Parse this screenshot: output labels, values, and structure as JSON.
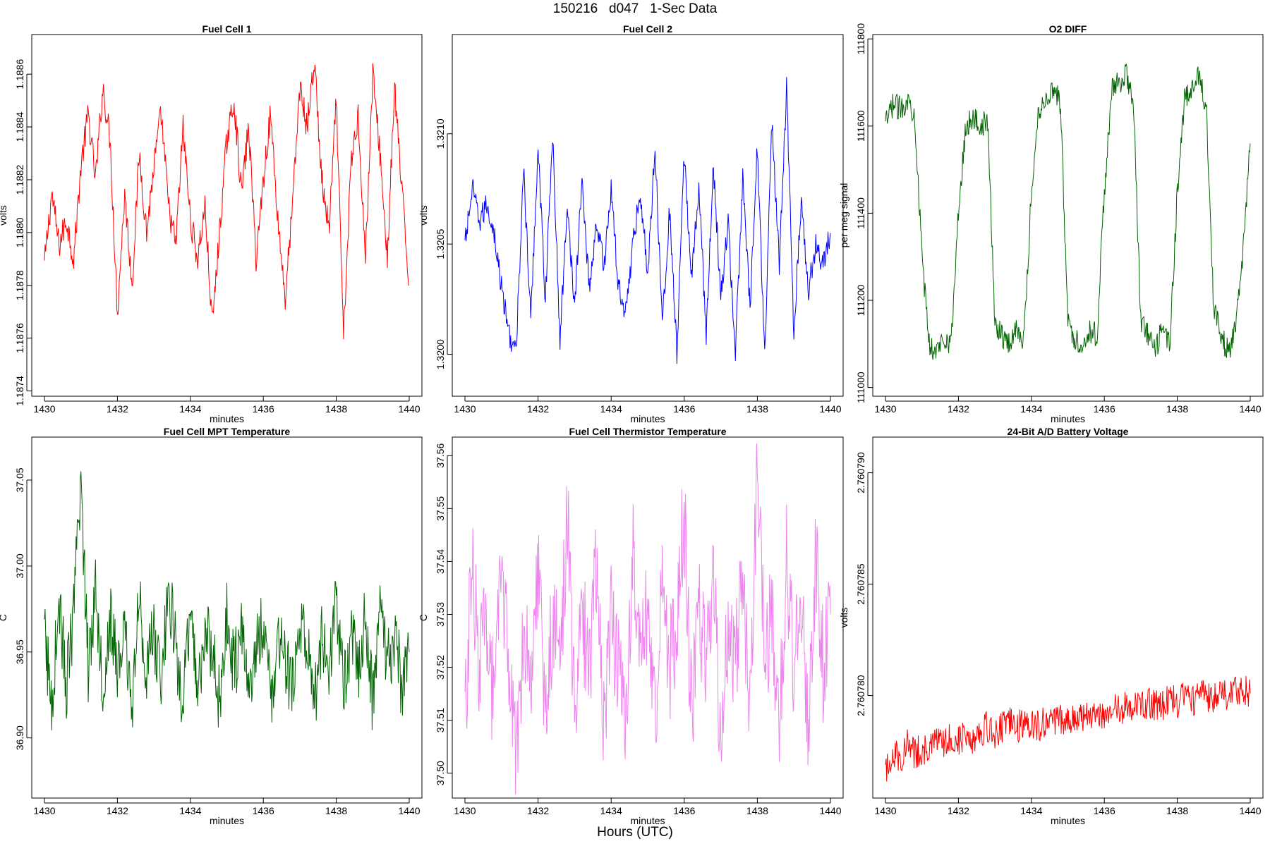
{
  "figure": {
    "title": "150216   d047   1-Sec Data",
    "xlabel": "Hours (UTC)"
  },
  "chart_data": [
    {
      "type": "line",
      "title": "Fuel Cell 1",
      "xlabel": "minutes",
      "ylabel": "volts",
      "color": "#ff0000",
      "xlim": [
        1430,
        1440
      ],
      "ylim": [
        1.18738,
        1.18875
      ],
      "xticks": [
        "1430",
        "1432",
        "1434",
        "1436",
        "1438",
        "1440"
      ],
      "yticks": [
        "1.1874",
        "1.1876",
        "1.1878",
        "1.1880",
        "1.1882",
        "1.1884",
        "1.1886"
      ],
      "series": [
        {
          "x": [
            1430.0,
            1430.2,
            1430.4,
            1430.6,
            1430.8,
            1431.0,
            1431.2,
            1431.4,
            1431.6,
            1431.8,
            1432.0,
            1432.2,
            1432.4,
            1432.6,
            1432.8,
            1433.0,
            1433.2,
            1433.4,
            1433.6,
            1433.8,
            1434.0,
            1434.2,
            1434.4,
            1434.6,
            1434.8,
            1435.0,
            1435.2,
            1435.4,
            1435.6,
            1435.8,
            1436.0,
            1436.2,
            1436.4,
            1436.6,
            1436.8,
            1437.0,
            1437.2,
            1437.4,
            1437.6,
            1437.8,
            1438.0,
            1438.2,
            1438.4,
            1438.6,
            1438.8,
            1439.0,
            1439.2,
            1439.4,
            1439.6,
            1439.8,
            1440.0
          ],
          "y": [
            1.18788,
            1.18815,
            1.18795,
            1.18805,
            1.1879,
            1.18825,
            1.18845,
            1.1882,
            1.18855,
            1.18835,
            1.1877,
            1.18815,
            1.1878,
            1.1883,
            1.188,
            1.18825,
            1.18845,
            1.1881,
            1.18795,
            1.1884,
            1.18805,
            1.1879,
            1.1881,
            1.18765,
            1.188,
            1.18835,
            1.1885,
            1.18815,
            1.1884,
            1.1879,
            1.1882,
            1.18845,
            1.18805,
            1.18775,
            1.1881,
            1.18855,
            1.1884,
            1.18865,
            1.1882,
            1.188,
            1.1885,
            1.1876,
            1.18825,
            1.18845,
            1.1879,
            1.1886,
            1.1883,
            1.1879,
            1.18855,
            1.18815,
            1.1878
          ]
        }
      ]
    },
    {
      "type": "line",
      "title": "Fuel Cell 2",
      "xlabel": "minutes",
      "ylabel": "volts",
      "color": "#0000ff",
      "xlim": [
        1430,
        1440
      ],
      "ylim": [
        1.31981,
        1.32145
      ],
      "xticks": [
        "1430",
        "1432",
        "1434",
        "1436",
        "1438",
        "1440"
      ],
      "yticks": [
        "1.3200",
        "1.3205",
        "1.3210"
      ],
      "series": [
        {
          "x": [
            1430.0,
            1430.2,
            1430.4,
            1430.6,
            1430.8,
            1431.0,
            1431.2,
            1431.4,
            1431.6,
            1431.8,
            1432.0,
            1432.2,
            1432.4,
            1432.6,
            1432.8,
            1433.0,
            1433.2,
            1433.4,
            1433.6,
            1433.8,
            1434.0,
            1434.2,
            1434.4,
            1434.6,
            1434.8,
            1435.0,
            1435.2,
            1435.4,
            1435.6,
            1435.8,
            1436.0,
            1436.2,
            1436.4,
            1436.6,
            1436.8,
            1437.0,
            1437.2,
            1437.4,
            1437.6,
            1437.8,
            1438.0,
            1438.2,
            1438.4,
            1438.6,
            1438.8,
            1439.0,
            1439.2,
            1439.4,
            1439.6,
            1439.8,
            1440.0
          ],
          "y": [
            1.3205,
            1.32075,
            1.3206,
            1.32068,
            1.32055,
            1.3203,
            1.3201,
            1.32,
            1.32085,
            1.32015,
            1.32095,
            1.32025,
            1.321,
            1.32005,
            1.3207,
            1.3202,
            1.3208,
            1.3203,
            1.3206,
            1.3204,
            1.32075,
            1.3203,
            1.3202,
            1.3205,
            1.32075,
            1.32035,
            1.32095,
            1.32015,
            1.32065,
            1.32,
            1.3209,
            1.32035,
            1.32075,
            1.3201,
            1.32085,
            1.32025,
            1.3206,
            1.32,
            1.3208,
            1.3202,
            1.32095,
            1.32,
            1.32105,
            1.3204,
            1.3212,
            1.3201,
            1.3207,
            1.3203,
            1.3205,
            1.3204,
            1.32055
          ]
        }
      ]
    },
    {
      "type": "line",
      "title": "O2 DIFF",
      "xlabel": "minutes",
      "ylabel": "per meg signal",
      "color": "#006400",
      "xlim": [
        1430,
        1440
      ],
      "ylim": [
        110980,
        111810
      ],
      "xticks": [
        "1430",
        "1432",
        "1434",
        "1436",
        "1438",
        "1440"
      ],
      "yticks": [
        "111000",
        "111200",
        "111400",
        "111600",
        "111800"
      ],
      "series": [
        {
          "x": [
            1430.0,
            1430.2,
            1430.4,
            1430.6,
            1430.8,
            1431.0,
            1431.2,
            1431.4,
            1431.6,
            1431.8,
            1432.0,
            1432.2,
            1432.4,
            1432.6,
            1432.8,
            1433.0,
            1433.2,
            1433.4,
            1433.6,
            1433.8,
            1434.0,
            1434.2,
            1434.4,
            1434.6,
            1434.8,
            1435.0,
            1435.2,
            1435.4,
            1435.6,
            1435.8,
            1436.0,
            1436.2,
            1436.4,
            1436.6,
            1436.8,
            1437.0,
            1437.2,
            1437.4,
            1437.6,
            1437.8,
            1438.0,
            1438.2,
            1438.4,
            1438.6,
            1438.8,
            1439.0,
            1439.2,
            1439.4,
            1439.6,
            1439.8,
            1440.0
          ],
          "y": [
            111600,
            111650,
            111640,
            111660,
            111630,
            111300,
            111100,
            111080,
            111120,
            111100,
            111400,
            111600,
            111620,
            111600,
            111610,
            111150,
            111120,
            111100,
            111140,
            111110,
            111450,
            111640,
            111660,
            111690,
            111650,
            111150,
            111110,
            111100,
            111130,
            111120,
            111450,
            111680,
            111700,
            111720,
            111650,
            111150,
            111120,
            111080,
            111140,
            111100,
            111450,
            111660,
            111680,
            111720,
            111640,
            111180,
            111120,
            111080,
            111150,
            111300,
            111560
          ]
        }
      ]
    },
    {
      "type": "line",
      "title": "Fuel Cell MPT Temperature",
      "xlabel": "minutes",
      "ylabel": "C",
      "color": "#006400",
      "xlim": [
        1430,
        1440
      ],
      "ylim": [
        36.865,
        37.075
      ],
      "xticks": [
        "1430",
        "1432",
        "1434",
        "1436",
        "1438",
        "1440"
      ],
      "yticks": [
        "36.90",
        "36.95",
        "37.00",
        "37.05"
      ],
      "series": [
        {
          "x": [
            1430.0,
            1430.2,
            1430.4,
            1430.6,
            1430.8,
            1431.0,
            1431.2,
            1431.4,
            1431.6,
            1431.8,
            1432.0,
            1432.2,
            1432.4,
            1432.6,
            1432.8,
            1433.0,
            1433.2,
            1433.4,
            1433.6,
            1433.8,
            1434.0,
            1434.2,
            1434.4,
            1434.6,
            1434.8,
            1435.0,
            1435.2,
            1435.4,
            1435.6,
            1435.8,
            1436.0,
            1436.2,
            1436.4,
            1436.6,
            1436.8,
            1437.0,
            1437.2,
            1437.4,
            1437.6,
            1437.8,
            1438.0,
            1438.2,
            1438.4,
            1438.6,
            1438.8,
            1439.0,
            1439.2,
            1439.4,
            1439.6,
            1439.8,
            1440.0
          ],
          "y": [
            36.96,
            36.92,
            36.98,
            36.93,
            36.97,
            37.05,
            36.94,
            36.99,
            36.93,
            36.97,
            36.94,
            36.96,
            36.92,
            36.98,
            36.94,
            36.96,
            36.93,
            36.99,
            36.95,
            36.92,
            36.97,
            36.93,
            36.96,
            36.95,
            36.92,
            36.97,
            36.94,
            36.96,
            36.93,
            36.95,
            36.97,
            36.92,
            36.96,
            36.94,
            36.93,
            36.97,
            36.95,
            36.92,
            36.96,
            36.94,
            36.98,
            36.93,
            36.96,
            36.94,
            36.97,
            36.92,
            36.98,
            36.94,
            36.96,
            36.93,
            36.95
          ]
        }
      ]
    },
    {
      "type": "line",
      "title": "Fuel Cell Thermistor Temperature",
      "xlabel": "minutes",
      "ylabel": "C",
      "color": "#ee82ee",
      "xlim": [
        1430,
        1440
      ],
      "ylim": [
        37.4953,
        37.5635
      ],
      "xticks": [
        "1430",
        "1432",
        "1434",
        "1436",
        "1438",
        "1440"
      ],
      "yticks": [
        "37.50",
        "37.51",
        "37.52",
        "37.53",
        "37.54",
        "37.55",
        "37.56"
      ],
      "series": [
        {
          "x": [
            1430.0,
            1430.2,
            1430.4,
            1430.6,
            1430.8,
            1431.0,
            1431.2,
            1431.4,
            1431.6,
            1431.8,
            1432.0,
            1432.2,
            1432.4,
            1432.6,
            1432.8,
            1433.0,
            1433.2,
            1433.4,
            1433.6,
            1433.8,
            1434.0,
            1434.2,
            1434.4,
            1434.6,
            1434.8,
            1435.0,
            1435.2,
            1435.4,
            1435.6,
            1435.8,
            1436.0,
            1436.2,
            1436.4,
            1436.6,
            1436.8,
            1437.0,
            1437.2,
            1437.4,
            1437.6,
            1437.8,
            1438.0,
            1438.2,
            1438.4,
            1438.6,
            1438.8,
            1439.0,
            1439.2,
            1439.4,
            1439.6,
            1439.8,
            1440.0
          ],
          "y": [
            37.51,
            37.54,
            37.52,
            37.53,
            37.51,
            37.54,
            37.52,
            37.5,
            37.53,
            37.52,
            37.54,
            37.51,
            37.53,
            37.52,
            37.55,
            37.51,
            37.53,
            37.52,
            37.54,
            37.51,
            37.53,
            37.52,
            37.51,
            37.54,
            37.52,
            37.53,
            37.51,
            37.54,
            37.52,
            37.53,
            37.55,
            37.51,
            37.53,
            37.52,
            37.54,
            37.5,
            37.53,
            37.52,
            37.54,
            37.51,
            37.56,
            37.52,
            37.53,
            37.51,
            37.54,
            37.52,
            37.53,
            37.51,
            37.54,
            37.52,
            37.53
          ]
        }
      ]
    },
    {
      "type": "line",
      "title": "24-Bit A/D Battery Voltage",
      "xlabel": "minutes",
      "ylabel": "volts",
      "color": "#ff0000",
      "xlim": [
        1430,
        1440
      ],
      "ylim": [
        2.7607754,
        2.7607916
      ],
      "xticks": [
        "1430",
        "1432",
        "1434",
        "1436",
        "1438",
        "1440"
      ],
      "yticks": [
        "2.760780",
        "2.760785",
        "2.760790"
      ],
      "series": [
        {
          "x": [
            1430.0,
            1430.2,
            1430.4,
            1430.6,
            1430.8,
            1431.0,
            1431.2,
            1431.4,
            1431.6,
            1431.8,
            1432.0,
            1432.2,
            1432.4,
            1432.6,
            1432.8,
            1433.0,
            1433.2,
            1433.4,
            1433.6,
            1433.8,
            1434.0,
            1434.2,
            1434.4,
            1434.6,
            1434.8,
            1435.0,
            1435.2,
            1435.4,
            1435.6,
            1435.8,
            1436.0,
            1436.2,
            1436.4,
            1436.6,
            1436.8,
            1437.0,
            1437.2,
            1437.4,
            1437.6,
            1437.8,
            1438.0,
            1438.2,
            1438.4,
            1438.6,
            1438.8,
            1439.0,
            1439.2,
            1439.4,
            1439.6,
            1439.8,
            1440.0
          ],
          "y": [
            2.7607765,
            2.7607775,
            2.7607772,
            2.7607778,
            2.7607774,
            2.7607776,
            2.7607775,
            2.760778,
            2.7607778,
            2.7607782,
            2.760778,
            2.7607783,
            2.7607781,
            2.7607784,
            2.7607786,
            2.7607783,
            2.7607786,
            2.7607788,
            2.7607786,
            2.7607787,
            2.7607788,
            2.7607786,
            2.7607789,
            2.7607787,
            2.760779,
            2.7607788,
            2.7607791,
            2.7607789,
            2.7607791,
            2.7607793,
            2.7607792,
            2.7607794,
            2.7607793,
            2.7607796,
            2.7607794,
            2.7607795,
            2.7607797,
            2.7607795,
            2.7607796,
            2.7607798,
            2.7607797,
            2.7607799,
            2.7607798,
            2.7607799,
            2.76078,
            2.7607799,
            2.7607801,
            2.76078,
            2.7607803,
            2.7607802,
            2.7607801
          ]
        }
      ]
    }
  ]
}
